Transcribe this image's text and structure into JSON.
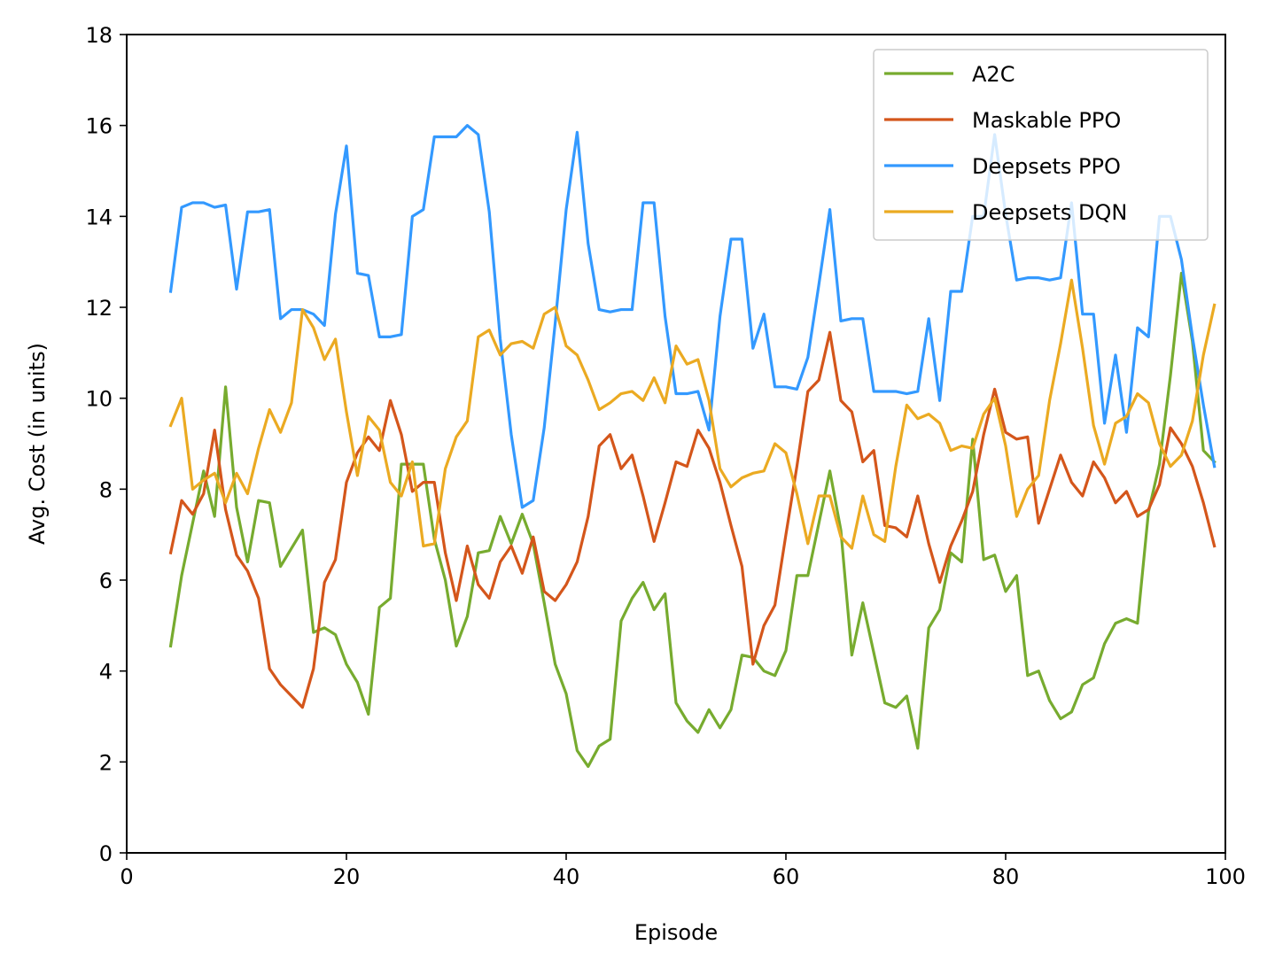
{
  "chart_data": {
    "type": "line",
    "title": "",
    "xlabel": "Episode",
    "ylabel": "Avg. Cost (in units)",
    "xlim": [
      0,
      100
    ],
    "ylim": [
      0,
      18
    ],
    "xticks": [
      "0",
      "20",
      "40",
      "60",
      "80",
      "100"
    ],
    "yticks": [
      "0",
      "2",
      "4",
      "6",
      "8",
      "10",
      "12",
      "14",
      "16",
      "18"
    ],
    "grid": false,
    "legend_position": "top-right",
    "x": [
      4,
      5,
      6,
      7,
      8,
      9,
      10,
      11,
      12,
      13,
      14,
      15,
      16,
      17,
      18,
      19,
      20,
      21,
      22,
      23,
      24,
      25,
      26,
      27,
      28,
      29,
      30,
      31,
      32,
      33,
      34,
      35,
      36,
      37,
      38,
      39,
      40,
      41,
      42,
      43,
      44,
      45,
      46,
      47,
      48,
      49,
      50,
      51,
      52,
      53,
      54,
      55,
      56,
      57,
      58,
      59,
      60,
      61,
      62,
      63,
      64,
      65,
      66,
      67,
      68,
      69,
      70,
      71,
      72,
      73,
      74,
      75,
      76,
      77,
      78,
      79,
      80,
      81,
      82,
      83,
      84,
      85,
      86,
      87,
      88,
      89,
      90,
      91,
      92,
      93,
      94,
      95,
      96,
      97,
      98,
      99
    ],
    "series": [
      {
        "name": "A2C",
        "color": "#77ab2f",
        "values": [
          4.55,
          6.1,
          7.25,
          8.4,
          7.4,
          10.25,
          7.6,
          6.4,
          7.75,
          7.7,
          6.3,
          6.7,
          7.1,
          4.85,
          4.95,
          4.8,
          4.15,
          3.75,
          3.05,
          5.4,
          5.6,
          8.55,
          8.55,
          8.55,
          6.9,
          6.0,
          4.55,
          5.2,
          6.6,
          6.65,
          7.4,
          6.8,
          7.45,
          6.8,
          5.5,
          4.15,
          3.5,
          2.25,
          1.9,
          2.35,
          2.5,
          5.1,
          5.6,
          5.95,
          5.35,
          5.7,
          3.3,
          2.9,
          2.65,
          3.15,
          2.75,
          3.15,
          4.35,
          4.3,
          4.0,
          3.9,
          4.45,
          6.1,
          6.1,
          7.25,
          8.4,
          7.1,
          4.35,
          5.5,
          4.4,
          3.3,
          3.2,
          3.45,
          2.3,
          4.95,
          5.35,
          6.6,
          6.4,
          9.1,
          6.45,
          6.55,
          5.75,
          6.1,
          3.9,
          4.0,
          3.35,
          2.95,
          3.1,
          3.7,
          3.85,
          4.6,
          5.05,
          5.15,
          5.05,
          7.5,
          8.55,
          10.5,
          12.75,
          11.25,
          8.85,
          8.6
        ]
      },
      {
        "name": "Maskable PPO",
        "color": "#d4561b",
        "values": [
          6.6,
          7.75,
          7.45,
          7.9,
          9.3,
          7.55,
          6.55,
          6.2,
          5.6,
          4.05,
          3.7,
          3.45,
          3.2,
          4.05,
          5.95,
          6.45,
          8.15,
          8.8,
          9.15,
          8.85,
          9.95,
          9.2,
          7.95,
          8.15,
          8.15,
          6.6,
          5.55,
          6.75,
          5.9,
          5.6,
          6.4,
          6.75,
          6.15,
          6.95,
          5.75,
          5.55,
          5.9,
          6.4,
          7.4,
          8.95,
          9.2,
          8.45,
          8.75,
          7.85,
          6.85,
          7.7,
          8.6,
          8.5,
          9.3,
          8.9,
          8.15,
          7.2,
          6.3,
          4.15,
          5.0,
          5.45,
          7.0,
          8.5,
          10.15,
          10.4,
          11.45,
          9.95,
          9.7,
          8.6,
          8.85,
          7.2,
          7.15,
          6.95,
          7.85,
          6.8,
          5.95,
          6.75,
          7.3,
          7.95,
          9.2,
          10.2,
          9.25,
          9.1,
          9.15,
          7.25,
          8.0,
          8.75,
          8.15,
          7.85,
          8.6,
          8.25,
          7.7,
          7.95,
          7.4,
          7.55,
          8.1,
          9.35,
          9.0,
          8.5,
          7.7,
          6.75
        ]
      },
      {
        "name": "Deepsets PPO",
        "color": "#3399ff",
        "values": [
          12.35,
          14.2,
          14.3,
          14.3,
          14.2,
          14.25,
          12.4,
          14.1,
          14.1,
          14.15,
          11.75,
          11.95,
          11.95,
          11.85,
          11.6,
          14.05,
          15.55,
          12.75,
          12.7,
          11.35,
          11.35,
          11.4,
          14.0,
          14.15,
          15.75,
          15.75,
          15.75,
          16.0,
          15.8,
          14.1,
          11.3,
          9.2,
          7.6,
          7.75,
          9.35,
          11.65,
          14.15,
          15.85,
          13.4,
          11.95,
          11.9,
          11.95,
          11.95,
          14.3,
          14.3,
          11.8,
          10.1,
          10.1,
          10.15,
          9.3,
          11.8,
          13.5,
          13.5,
          11.1,
          11.85,
          10.25,
          10.25,
          10.2,
          10.9,
          12.5,
          14.15,
          11.7,
          11.75,
          11.75,
          10.15,
          10.15,
          10.15,
          10.1,
          10.15,
          11.75,
          9.95,
          12.35,
          12.35,
          14.0,
          14.0,
          15.8,
          14.05,
          12.6,
          12.65,
          12.65,
          12.6,
          12.65,
          14.3,
          11.85,
          11.85,
          9.45,
          10.95,
          9.25,
          11.55,
          11.35,
          14.0,
          14.0,
          13.05,
          11.35,
          9.85,
          8.5
        ]
      },
      {
        "name": "Deepsets DQN",
        "color": "#ebaa22",
        "values": [
          9.4,
          10.0,
          8.0,
          8.2,
          8.35,
          7.7,
          8.35,
          7.9,
          8.9,
          9.75,
          9.25,
          9.9,
          11.95,
          11.55,
          10.85,
          11.3,
          9.7,
          8.3,
          9.6,
          9.3,
          8.15,
          7.85,
          8.6,
          6.75,
          6.8,
          8.45,
          9.15,
          9.5,
          11.35,
          11.5,
          10.95,
          11.2,
          11.25,
          11.1,
          11.85,
          12.0,
          11.15,
          10.95,
          10.4,
          9.75,
          9.9,
          10.1,
          10.15,
          9.95,
          10.45,
          9.9,
          11.15,
          10.75,
          10.85,
          9.95,
          8.45,
          8.05,
          8.25,
          8.35,
          8.4,
          9.0,
          8.8,
          7.9,
          6.8,
          7.85,
          7.85,
          6.95,
          6.7,
          7.85,
          7.0,
          6.85,
          8.5,
          9.85,
          9.55,
          9.65,
          9.45,
          8.85,
          8.95,
          8.9,
          9.65,
          10.0,
          8.95,
          7.4,
          8.0,
          8.3,
          9.95,
          11.2,
          12.6,
          11.1,
          9.4,
          8.55,
          9.45,
          9.6,
          10.1,
          9.9,
          9.0,
          8.5,
          8.75,
          9.5,
          10.95,
          12.05
        ]
      }
    ]
  }
}
